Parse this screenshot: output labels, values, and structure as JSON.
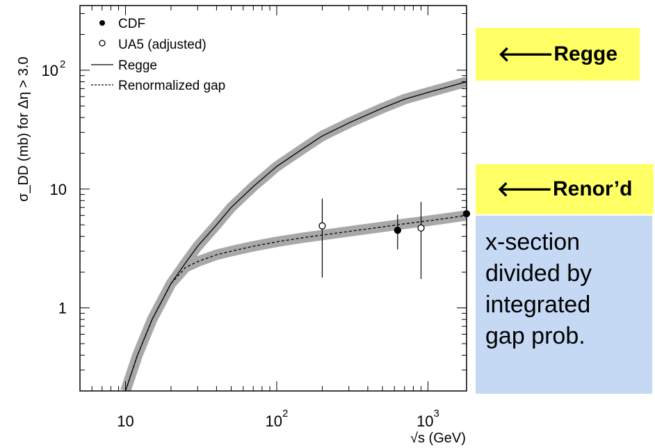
{
  "chart_data": {
    "type": "line",
    "xscale": "log",
    "yscale": "log",
    "xlim": [
      5,
      1800
    ],
    "ylim": [
      0.2,
      350
    ],
    "xlabel": "√s (GeV)",
    "ylabel": "σ_DD (mb) for Δη > 3.0",
    "x_ticks": [
      {
        "value": 10,
        "label": "10",
        "sup": ""
      },
      {
        "value": 100,
        "label": "10",
        "sup": "2"
      },
      {
        "value": 1000,
        "label": "10",
        "sup": "3"
      }
    ],
    "y_ticks": [
      {
        "value": 1,
        "label": "1",
        "sup": ""
      },
      {
        "value": 10,
        "label": "10",
        "sup": ""
      },
      {
        "value": 100,
        "label": "10",
        "sup": "2"
      }
    ],
    "legend_position": "top-left",
    "legend": [
      {
        "marker": "filled-circle",
        "label": "CDF"
      },
      {
        "marker": "open-circle",
        "label": "UA5 (adjusted)"
      },
      {
        "marker": "solid-line",
        "label": "Regge"
      },
      {
        "marker": "dashed-line",
        "label": "Renormalized gap"
      }
    ],
    "series": [
      {
        "name": "Regge",
        "style": "solid",
        "x": [
          10,
          12,
          15,
          20,
          25,
          30,
          40,
          50,
          70,
          100,
          150,
          200,
          300,
          500,
          700,
          1000,
          1500,
          1800
        ],
        "y": [
          0.2,
          0.4,
          0.8,
          1.6,
          2.4,
          3.3,
          5.0,
          7.0,
          10.5,
          15.5,
          22,
          28,
          36,
          48,
          57,
          65,
          75,
          80
        ]
      },
      {
        "name": "Renormalized gap",
        "style": "dashed",
        "x": [
          10,
          12,
          15,
          20,
          25,
          28,
          30,
          40,
          50,
          70,
          100,
          150,
          200,
          300,
          500,
          700,
          1000,
          1500,
          1800
        ],
        "y": [
          0.2,
          0.4,
          0.8,
          1.6,
          2.2,
          2.35,
          2.45,
          2.8,
          3.0,
          3.3,
          3.6,
          3.9,
          4.1,
          4.4,
          4.8,
          5.1,
          5.4,
          5.8,
          6.0
        ]
      }
    ],
    "points": [
      {
        "name": "CDF",
        "marker": "filled",
        "x": 630,
        "y": 4.5,
        "ylo": 3.1,
        "yhi": 6.1
      },
      {
        "name": "CDF",
        "marker": "filled",
        "x": 1800,
        "y": 6.2,
        "ylo": 4.6,
        "yhi": 8.0
      },
      {
        "name": "UA5 (adjusted)",
        "marker": "open",
        "x": 200,
        "y": 4.9,
        "ylo": 1.8,
        "yhi": 8.3
      },
      {
        "name": "UA5 (adjusted)",
        "marker": "open",
        "x": 900,
        "y": 4.7,
        "ylo": 1.75,
        "yhi": 7.8
      }
    ]
  },
  "annotations": {
    "regge_label": "Regge",
    "renor_label": "Renor’d",
    "arrow_glyph": "🡐",
    "note_lines": [
      "x-section",
      "divided by",
      "integrated",
      "gap prob."
    ]
  },
  "colors": {
    "band": "#a8a8a8",
    "regge_callout_bg": "#ffff66",
    "note_bg": "#c5d9f5"
  }
}
